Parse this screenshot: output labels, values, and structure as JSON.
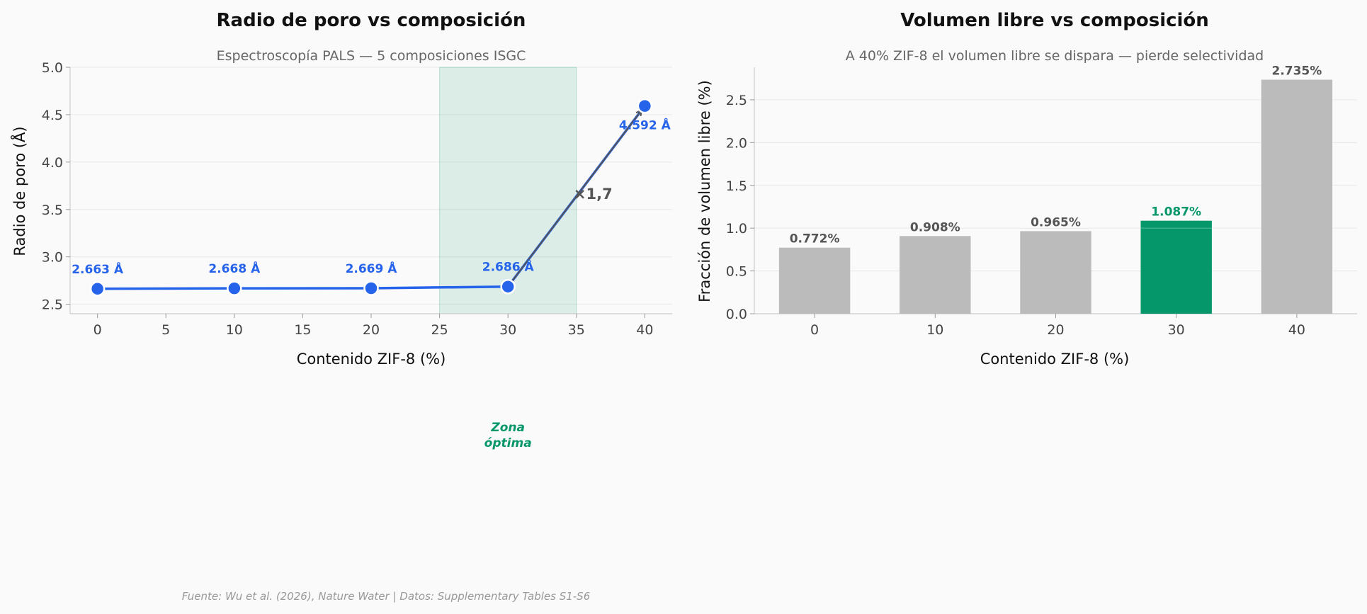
{
  "chart_data": [
    {
      "type": "line",
      "title": "Radio de poro vs composición",
      "subtitle": "Espectroscopía PALS — 5 composiciones ISGC",
      "xlabel": "Contenido ZIF-8 (%)",
      "ylabel": "Radio de poro (Å)",
      "x": [
        0,
        10,
        20,
        30,
        40
      ],
      "y": [
        2.663,
        2.668,
        2.669,
        2.686,
        4.592
      ],
      "point_labels": [
        "2.663 Å",
        "2.668 Å",
        "2.669 Å",
        "2.686 Å",
        "4.592 Å"
      ],
      "xlim": [
        -2,
        42
      ],
      "ylim": [
        2.4,
        5.0
      ],
      "xticks": [
        0,
        5,
        10,
        15,
        20,
        25,
        30,
        35,
        40
      ],
      "yticks": [
        2.5,
        3.0,
        3.5,
        4.0,
        4.5,
        5.0
      ],
      "ytick_labels": [
        "2.5",
        "3.0",
        "3.5",
        "4.0",
        "4.5",
        "5.0"
      ],
      "shaded_region": {
        "x_from": 25,
        "x_to": 35,
        "label_line1": "Zona",
        "label_line2": "óptima"
      },
      "annotation": {
        "text": "×1,7",
        "from_x": 30,
        "from_y": 2.686,
        "to_x": 40,
        "to_y": 4.592
      },
      "colors": {
        "line": "#2563eb",
        "zone": "#059669"
      }
    },
    {
      "type": "bar",
      "title": "Volumen libre vs composición",
      "subtitle": "A 40% ZIF-8 el volumen libre se dispara — pierde selectividad",
      "xlabel": "Contenido ZIF-8 (%)",
      "ylabel": "Fracción de volumen libre (%)",
      "categories": [
        "0",
        "10",
        "20",
        "30",
        "40"
      ],
      "values": [
        0.772,
        0.908,
        0.965,
        1.087,
        2.735
      ],
      "value_labels": [
        "0.772%",
        "0.908%",
        "0.965%",
        "1.087%",
        "2.735%"
      ],
      "highlight_index": 3,
      "ylim": [
        0,
        2.88
      ],
      "yticks": [
        0.0,
        0.5,
        1.0,
        1.5,
        2.0,
        2.5
      ],
      "ytick_labels": [
        "0.0",
        "0.5",
        "1.0",
        "1.5",
        "2.0",
        "2.5"
      ],
      "colors": {
        "bar": "#bbbbbb",
        "highlight": "#059669"
      }
    }
  ],
  "footer": "Fuente: Wu et al. (2026), Nature Water | Datos: Supplementary Tables S1-S6"
}
